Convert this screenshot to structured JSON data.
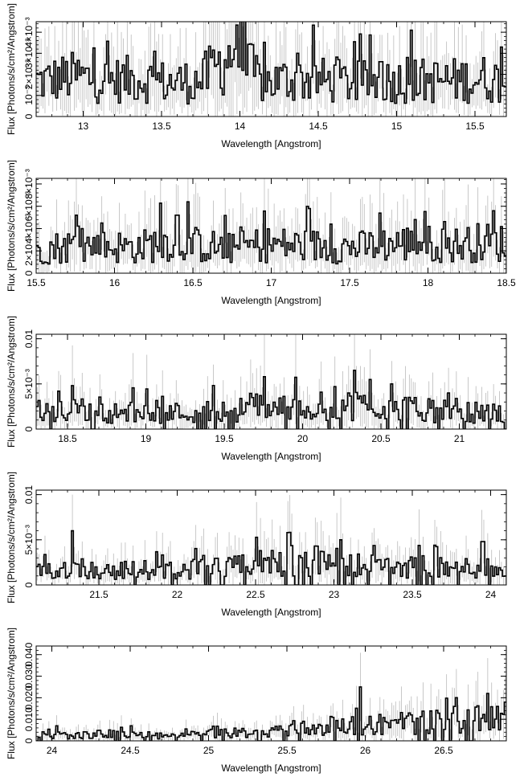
{
  "figure": {
    "xlabel": "Wavelength [Angstrom]",
    "ylabel": "Flux [Photons/s/cm²/Angstrom]",
    "colors": {
      "spectrum": "#000000",
      "error_bars": "#bbbbbb",
      "frame": "#000000"
    }
  },
  "chart_data": [
    {
      "type": "line",
      "style": "histogram-step",
      "xlim": [
        12.7,
        15.7
      ],
      "ylim": [
        0,
        0.0045
      ],
      "xticks": [
        13,
        13.5,
        14,
        14.5,
        15,
        15.5
      ],
      "xtick_labels": [
        "13",
        "13.5",
        "14",
        "14.5",
        "15",
        "15.5"
      ],
      "yticks": [
        0,
        0.001,
        0.002,
        0.003,
        0.004
      ],
      "ytick_labels": [
        "0",
        "10⁻³",
        "2×10⁻³",
        "3×10⁻³",
        "4×10⁻³"
      ],
      "x": [
        12.75,
        12.95,
        13.15,
        13.35,
        13.55,
        13.75,
        13.95,
        14.15,
        14.35,
        14.55,
        14.75,
        14.95,
        15.15,
        15.35,
        15.55,
        15.65
      ],
      "y": [
        0.0017,
        0.0019,
        0.0017,
        0.0018,
        0.0016,
        0.0017,
        0.003,
        0.0016,
        0.0018,
        0.0017,
        0.0016,
        0.0017,
        0.0017,
        0.0017,
        0.0018,
        0.0017
      ],
      "x_features": [
        13.97,
        14.37,
        14.9,
        15.07
      ],
      "y_features": [
        0.0032,
        0.003,
        0.0026,
        0.0028
      ]
    },
    {
      "type": "line",
      "style": "histogram-step",
      "xlim": [
        15.5,
        18.5
      ],
      "ylim": [
        0,
        0.0085
      ],
      "xticks": [
        15.5,
        16,
        16.5,
        17,
        17.5,
        18,
        18.5
      ],
      "xtick_labels": [
        "15.5",
        "16",
        "16.5",
        "17",
        "17.5",
        "18",
        "18.5"
      ],
      "yticks": [
        0,
        0.002,
        0.004,
        0.006,
        0.008
      ],
      "ytick_labels": [
        "0",
        "2×10⁻³",
        "4×10⁻³",
        "6×10⁻³",
        "8×10⁻³"
      ],
      "x": [
        15.55,
        15.75,
        15.95,
        16.15,
        16.35,
        16.55,
        16.75,
        16.95,
        17.15,
        17.35,
        17.55,
        17.75,
        17.95,
        18.15,
        18.35,
        18.45
      ],
      "y": [
        0.0022,
        0.0025,
        0.0024,
        0.0023,
        0.0029,
        0.0025,
        0.0022,
        0.0026,
        0.0025,
        0.0024,
        0.0023,
        0.0026,
        0.0027,
        0.0025,
        0.0028,
        0.0027
      ],
      "x_features": [
        15.92,
        16.4,
        17.38,
        17.92,
        18.42
      ],
      "y_features": [
        0.0045,
        0.0052,
        0.0044,
        0.0048,
        0.0056
      ]
    },
    {
      "type": "line",
      "style": "histogram-step",
      "xlim": [
        18.3,
        21.3
      ],
      "ylim": [
        0,
        0.0105
      ],
      "xticks": [
        18.5,
        19,
        19.5,
        20,
        20.5,
        21
      ],
      "xtick_labels": [
        "18.5",
        "19",
        "19.5",
        "20",
        "20.5",
        "21"
      ],
      "yticks": [
        0,
        0.005,
        0.01
      ],
      "ytick_labels": [
        "0",
        "5×10⁻³",
        "0.01"
      ],
      "x": [
        18.35,
        18.55,
        18.75,
        18.95,
        19.15,
        19.35,
        19.55,
        19.75,
        19.95,
        20.15,
        20.35,
        20.55,
        20.75,
        20.95,
        21.15,
        21.25
      ],
      "y": [
        0.0018,
        0.002,
        0.0017,
        0.0019,
        0.0018,
        0.0019,
        0.002,
        0.0026,
        0.0024,
        0.0025,
        0.0027,
        0.0023,
        0.0021,
        0.0019,
        0.0018,
        0.0018
      ],
      "x_features": [
        18.44,
        19.76,
        20.21,
        20.33,
        20.57
      ],
      "y_features": [
        0.0042,
        0.0058,
        0.0047,
        0.0065,
        0.005
      ]
    },
    {
      "type": "line",
      "style": "histogram-step",
      "xlim": [
        21.1,
        24.1
      ],
      "ylim": [
        0,
        0.0105
      ],
      "xticks": [
        21.5,
        22,
        22.5,
        23,
        23.5,
        24
      ],
      "xtick_labels": [
        "21.5",
        "22",
        "22.5",
        "23",
        "23.5",
        "24"
      ],
      "yticks": [
        0,
        0.005,
        0.01
      ],
      "ytick_labels": [
        "0",
        "5×10⁻³",
        "0.01"
      ],
      "x": [
        21.15,
        21.35,
        21.55,
        21.75,
        21.95,
        22.15,
        22.35,
        22.55,
        22.75,
        22.95,
        23.15,
        23.35,
        23.55,
        23.75,
        23.95,
        24.05
      ],
      "y": [
        0.0014,
        0.002,
        0.0015,
        0.0017,
        0.0016,
        0.0018,
        0.0019,
        0.0024,
        0.0028,
        0.0026,
        0.0022,
        0.0021,
        0.0019,
        0.0018,
        0.002,
        0.0017
      ],
      "x_features": [
        21.33,
        22.71,
        23.04,
        23.95
      ],
      "y_features": [
        0.006,
        0.0058,
        0.005,
        0.0048
      ]
    },
    {
      "type": "line",
      "style": "histogram-step",
      "xlim": [
        23.9,
        26.9
      ],
      "ylim": [
        0,
        0.044
      ],
      "xticks": [
        24,
        24.5,
        25,
        25.5,
        26,
        26.5
      ],
      "xtick_labels": [
        "24",
        "24.5",
        "25",
        "25.5",
        "26",
        "26.5"
      ],
      "yticks": [
        0,
        0.01,
        0.02,
        0.03,
        0.04
      ],
      "ytick_labels": [
        "0",
        "0.010",
        "0.020",
        "0.030",
        "0.040"
      ],
      "x": [
        23.95,
        24.15,
        24.35,
        24.55,
        24.75,
        24.95,
        25.15,
        25.35,
        25.55,
        25.75,
        25.95,
        26.15,
        26.35,
        26.55,
        26.75,
        26.85
      ],
      "y": [
        0.003,
        0.0025,
        0.0032,
        0.0028,
        0.002,
        0.003,
        0.0035,
        0.004,
        0.006,
        0.006,
        0.007,
        0.008,
        0.0085,
        0.009,
        0.01,
        0.01
      ],
      "x_features": [
        25.97,
        26.58,
        26.78
      ],
      "y_features": [
        0.025,
        0.02,
        0.022
      ]
    }
  ]
}
